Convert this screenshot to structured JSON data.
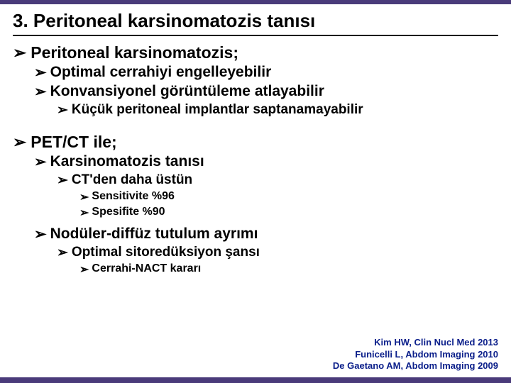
{
  "colors": {
    "bar": "#4a3b7a",
    "text": "#000000",
    "refs": "#0a1e8a",
    "background": "#ffffff"
  },
  "title": "3. Peritoneal karsinomatozis tanısı",
  "bullets": [
    {
      "level": 1,
      "text": "Peritoneal karsinomatozis;"
    },
    {
      "level": 2,
      "text": "Optimal cerrahiyi engelleyebilir"
    },
    {
      "level": 2,
      "text": "Konvansiyonel görüntüleme atlayabilir"
    },
    {
      "level": 3,
      "text": "Küçük peritoneal implantlar saptanamayabilir"
    },
    {
      "level": "gap-md",
      "text": ""
    },
    {
      "level": 1,
      "text": "PET/CT ile;"
    },
    {
      "level": 2,
      "text": "Karsinomatozis tanısı"
    },
    {
      "level": 3,
      "text": "CT'den daha üstün"
    },
    {
      "level": 4,
      "text": "Sensitivite %96"
    },
    {
      "level": 4,
      "text": "Spesifite %90"
    },
    {
      "level": "gap-sm",
      "text": ""
    },
    {
      "level": 2,
      "text": "Nodüler-diffüz tutulum ayrımı"
    },
    {
      "level": 3,
      "text": "Optimal sitoredüksiyon şansı"
    },
    {
      "level": 4,
      "text": "Cerrahi-NACT kararı"
    }
  ],
  "references": [
    "Kim HW, Clin Nucl Med 2013",
    "Funicelli L, Abdom Imaging 2010",
    "De Gaetano AM, Abdom Imaging 2009"
  ],
  "bullet_glyph": "➢"
}
